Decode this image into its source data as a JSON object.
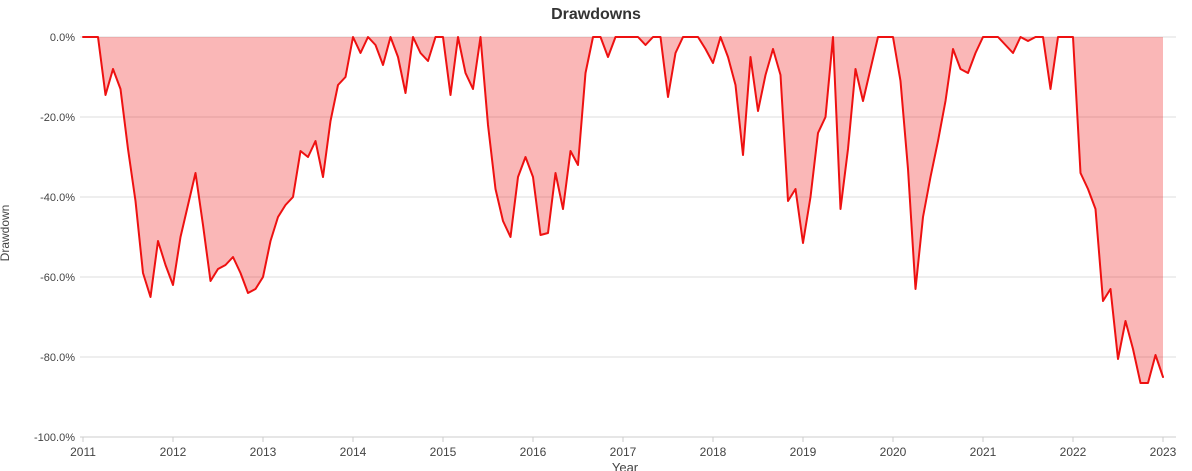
{
  "title": "Drawdowns",
  "colors": {
    "line": "#ee1111",
    "fill": "rgba(238,17,17,0.30)",
    "gridline": "#dddddd",
    "axis": "#cccccc",
    "tick_text": "#444444",
    "title_text": "#333333"
  },
  "chart_data": {
    "type": "area",
    "title": "Drawdowns",
    "xlabel": "Year",
    "ylabel": "Drawdown",
    "grid": true,
    "legend_position": "none",
    "ylim": [
      -100,
      0
    ],
    "y_tick_labels": [
      "0.0%",
      "-20.0%",
      "-40.0%",
      "-60.0%",
      "-80.0%",
      "-100.0%"
    ],
    "y_tick_values": [
      0,
      -20,
      -40,
      -60,
      -80,
      -100
    ],
    "x_tick_years": [
      2011,
      2012,
      2013,
      2014,
      2015,
      2016,
      2017,
      2018,
      2019,
      2020,
      2021,
      2022,
      2023
    ],
    "series_name": "Drawdown",
    "x_start": "2011-01",
    "x_end": "2023-01",
    "monthly_drawdown_pct": {
      "2011": [
        0,
        0,
        0,
        -14.5,
        -8,
        -13,
        -28,
        -41,
        -59,
        -65,
        -51,
        -57
      ],
      "2012": [
        -62,
        -50,
        -42,
        -34,
        -47,
        -61,
        -58,
        -57,
        -55,
        -59,
        -64,
        -63
      ],
      "2013": [
        -60,
        -51,
        -45,
        -42,
        -40,
        -28.5,
        -30,
        -26,
        -35,
        -21,
        -12,
        -10
      ],
      "2014": [
        0,
        -4,
        0,
        -2,
        -7,
        0,
        -5,
        -14,
        0,
        -4,
        -6,
        0
      ],
      "2015": [
        0,
        -14.5,
        0,
        -9,
        -13,
        0,
        -22,
        -38,
        -46,
        -50,
        -35,
        -30
      ],
      "2016": [
        -35,
        -49.5,
        -49,
        -34,
        -43,
        -28.5,
        -32,
        -9,
        0,
        0,
        -5,
        0
      ],
      "2017": [
        0,
        0,
        0,
        -2,
        0,
        0,
        -15,
        -4,
        0,
        0,
        0,
        -3
      ],
      "2018": [
        -6.5,
        0,
        -5,
        -12,
        -29.5,
        -5,
        -18.5,
        -9.5,
        -3,
        -9.5,
        -41,
        -38
      ],
      "2019": [
        -51.5,
        -40,
        -24,
        -20,
        0,
        -43,
        -28,
        -8,
        -16,
        -8,
        0,
        0
      ],
      "2020": [
        0,
        -11,
        -33,
        -63,
        -45,
        -35,
        -26,
        -16,
        -3,
        -8,
        -9,
        -4
      ],
      "2021": [
        0,
        0,
        0,
        -2,
        -4,
        0,
        -1,
        0,
        0,
        -13,
        0,
        0
      ],
      "2022": [
        0,
        -34,
        -38,
        -43,
        -66,
        -63,
        -80.5,
        -71,
        -78,
        -86.5,
        -86.5,
        -79.5
      ],
      "2023": [
        -85
      ]
    }
  }
}
